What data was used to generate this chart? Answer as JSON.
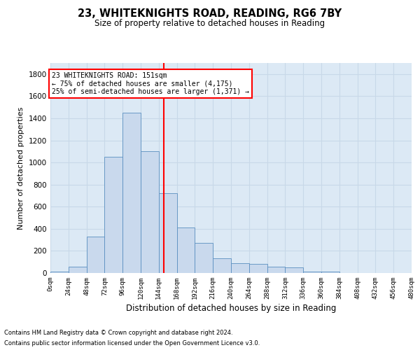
{
  "title1": "23, WHITEKNIGHTS ROAD, READING, RG6 7BY",
  "title2": "Size of property relative to detached houses in Reading",
  "xlabel": "Distribution of detached houses by size in Reading",
  "ylabel": "Number of detached properties",
  "footer1": "Contains HM Land Registry data © Crown copyright and database right 2024.",
  "footer2": "Contains public sector information licensed under the Open Government Licence v3.0.",
  "bin_labels": [
    "0sqm",
    "24sqm",
    "48sqm",
    "72sqm",
    "96sqm",
    "120sqm",
    "144sqm",
    "168sqm",
    "192sqm",
    "216sqm",
    "240sqm",
    "264sqm",
    "288sqm",
    "312sqm",
    "336sqm",
    "360sqm",
    "384sqm",
    "408sqm",
    "432sqm",
    "456sqm",
    "480sqm"
  ],
  "bin_edges": [
    0,
    24,
    48,
    72,
    96,
    120,
    144,
    168,
    192,
    216,
    240,
    264,
    288,
    312,
    336,
    360,
    384,
    408,
    432,
    456,
    480
  ],
  "bar_heights": [
    10,
    60,
    330,
    1050,
    1450,
    1100,
    720,
    410,
    270,
    130,
    90,
    80,
    60,
    50,
    10,
    10,
    0,
    0,
    0,
    0
  ],
  "bar_color": "#c9d9ed",
  "bar_edge_color": "#5a8fc0",
  "property_size": 151,
  "vline_color": "red",
  "annotation_line1": "23 WHITEKNIGHTS ROAD: 151sqm",
  "annotation_line2": "← 75% of detached houses are smaller (4,175)",
  "annotation_line3": "25% of semi-detached houses are larger (1,371) →",
  "annotation_box_color": "white",
  "annotation_box_edge": "red",
  "ylim": [
    0,
    1900
  ],
  "yticks": [
    0,
    200,
    400,
    600,
    800,
    1000,
    1200,
    1400,
    1600,
    1800
  ],
  "grid_color": "#c8d8e8",
  "bg_color": "#dce9f5"
}
